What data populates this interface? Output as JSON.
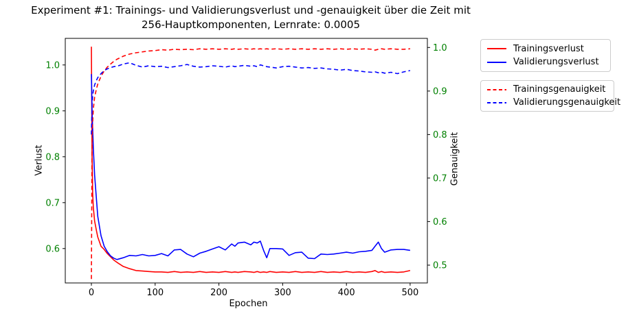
{
  "chart_data": {
    "type": "line",
    "title": "Experiment #1: Trainings- und Validierungsverlust und -genauigkeit über die Zeit mit\n256-Hauptkomponenten, Lernrate: 0.0005",
    "xlabel": "Epochen",
    "ylabel_left": "Verlust",
    "ylabel_right": "Genauigkeit",
    "axis_label_color": "#008000",
    "x_ticks": [
      0,
      100,
      200,
      300,
      400,
      500
    ],
    "y_left_ticks": [
      0.6,
      0.7,
      0.8,
      0.9,
      1.0
    ],
    "y_right_ticks": [
      0.5,
      0.6,
      0.7,
      0.8,
      0.9,
      1.0
    ],
    "xlim": [
      -41,
      527
    ],
    "ylim_left": [
      0.525,
      1.058
    ],
    "ylim_right": [
      0.459,
      1.021
    ],
    "grid": false,
    "legend": {
      "position": "outside-upper-right",
      "boxes": [
        [
          "Trainingsverlust",
          "Validierungsverlust"
        ],
        [
          "Trainingsgenauigkeit",
          "Validierungsgenauigkeit"
        ]
      ]
    },
    "series": [
      {
        "name": "Trainingsverlust",
        "axis": "left",
        "color": "#ff0000",
        "style": "solid",
        "x": [
          0,
          1,
          2,
          3,
          5,
          8,
          10,
          15,
          20,
          25,
          30,
          35,
          40,
          50,
          60,
          70,
          80,
          90,
          100,
          110,
          120,
          130,
          140,
          150,
          160,
          170,
          180,
          190,
          200,
          210,
          220,
          225,
          230,
          240,
          250,
          255,
          260,
          265,
          270,
          275,
          280,
          290,
          300,
          310,
          320,
          330,
          340,
          350,
          360,
          370,
          380,
          390,
          400,
          410,
          420,
          430,
          440,
          445,
          450,
          455,
          460,
          470,
          480,
          490,
          500
        ],
        "y": [
          1.04,
          0.8,
          0.72,
          0.69,
          0.66,
          0.638,
          0.625,
          0.605,
          0.598,
          0.589,
          0.582,
          0.575,
          0.57,
          0.561,
          0.556,
          0.552,
          0.551,
          0.55,
          0.549,
          0.549,
          0.548,
          0.55,
          0.548,
          0.549,
          0.548,
          0.55,
          0.548,
          0.549,
          0.548,
          0.55,
          0.548,
          0.549,
          0.548,
          0.55,
          0.549,
          0.548,
          0.55,
          0.548,
          0.549,
          0.548,
          0.55,
          0.548,
          0.549,
          0.548,
          0.55,
          0.548,
          0.549,
          0.548,
          0.55,
          0.548,
          0.549,
          0.548,
          0.55,
          0.548,
          0.549,
          0.548,
          0.55,
          0.552,
          0.548,
          0.55,
          0.548,
          0.549,
          0.548,
          0.549,
          0.552
        ]
      },
      {
        "name": "Validierungsverlust",
        "axis": "left",
        "color": "#0000ff",
        "style": "solid",
        "x": [
          0,
          1,
          2,
          3,
          5,
          8,
          10,
          15,
          20,
          25,
          30,
          35,
          40,
          50,
          60,
          70,
          80,
          90,
          100,
          110,
          120,
          130,
          140,
          150,
          160,
          170,
          180,
          190,
          200,
          210,
          220,
          225,
          230,
          240,
          250,
          255,
          260,
          265,
          270,
          275,
          280,
          290,
          300,
          310,
          320,
          330,
          340,
          350,
          360,
          370,
          380,
          390,
          400,
          410,
          420,
          430,
          440,
          445,
          450,
          455,
          460,
          470,
          480,
          490,
          500
        ],
        "y": [
          0.98,
          0.9,
          0.86,
          0.82,
          0.76,
          0.705,
          0.67,
          0.628,
          0.605,
          0.593,
          0.584,
          0.579,
          0.576,
          0.58,
          0.585,
          0.584,
          0.587,
          0.584,
          0.585,
          0.589,
          0.584,
          0.597,
          0.598,
          0.588,
          0.582,
          0.59,
          0.594,
          0.599,
          0.604,
          0.597,
          0.61,
          0.605,
          0.612,
          0.614,
          0.608,
          0.614,
          0.612,
          0.616,
          0.596,
          0.58,
          0.6,
          0.6,
          0.599,
          0.585,
          0.591,
          0.592,
          0.579,
          0.578,
          0.588,
          0.587,
          0.588,
          0.59,
          0.592,
          0.59,
          0.593,
          0.594,
          0.596,
          0.605,
          0.614,
          0.6,
          0.592,
          0.597,
          0.598,
          0.598,
          0.596
        ]
      },
      {
        "name": "Trainingsgenauigkeit",
        "axis": "right",
        "color": "#ff0000",
        "style": "dashed",
        "x": [
          0,
          1,
          2,
          3,
          5,
          8,
          10,
          15,
          20,
          25,
          30,
          35,
          40,
          50,
          60,
          70,
          80,
          90,
          100,
          110,
          120,
          130,
          140,
          150,
          160,
          170,
          180,
          190,
          200,
          210,
          220,
          225,
          230,
          240,
          250,
          255,
          260,
          265,
          270,
          275,
          280,
          290,
          300,
          310,
          320,
          330,
          340,
          350,
          360,
          370,
          380,
          390,
          400,
          410,
          420,
          430,
          440,
          445,
          450,
          455,
          460,
          470,
          480,
          490,
          500
        ],
        "y": [
          0.468,
          0.78,
          0.83,
          0.858,
          0.886,
          0.906,
          0.916,
          0.934,
          0.946,
          0.955,
          0.962,
          0.968,
          0.973,
          0.98,
          0.985,
          0.988,
          0.99,
          0.992,
          0.993,
          0.995,
          0.994,
          0.996,
          0.995,
          0.996,
          0.995,
          0.997,
          0.996,
          0.997,
          0.996,
          0.997,
          0.996,
          0.997,
          0.996,
          0.997,
          0.996,
          0.997,
          0.996,
          0.997,
          0.996,
          0.997,
          0.996,
          0.997,
          0.996,
          0.997,
          0.996,
          0.997,
          0.996,
          0.997,
          0.996,
          0.997,
          0.996,
          0.997,
          0.996,
          0.997,
          0.996,
          0.997,
          0.996,
          0.994,
          0.996,
          0.997,
          0.996,
          0.997,
          0.996,
          0.996,
          0.997
        ]
      },
      {
        "name": "Validierungsgenauigkeit",
        "axis": "right",
        "color": "#0000ff",
        "style": "dashed",
        "x": [
          0,
          1,
          2,
          3,
          5,
          8,
          10,
          15,
          20,
          25,
          30,
          35,
          40,
          50,
          60,
          70,
          80,
          90,
          100,
          110,
          120,
          130,
          140,
          150,
          160,
          170,
          180,
          190,
          200,
          210,
          220,
          225,
          230,
          240,
          250,
          255,
          260,
          265,
          270,
          275,
          280,
          290,
          300,
          310,
          320,
          330,
          340,
          350,
          360,
          370,
          380,
          390,
          400,
          410,
          420,
          430,
          440,
          445,
          450,
          455,
          460,
          470,
          480,
          490,
          500
        ],
        "y": [
          0.8,
          0.87,
          0.89,
          0.9,
          0.914,
          0.925,
          0.931,
          0.94,
          0.947,
          0.951,
          0.954,
          0.956,
          0.957,
          0.962,
          0.965,
          0.959,
          0.955,
          0.958,
          0.956,
          0.957,
          0.954,
          0.956,
          0.958,
          0.961,
          0.957,
          0.955,
          0.956,
          0.958,
          0.957,
          0.955,
          0.958,
          0.956,
          0.957,
          0.959,
          0.957,
          0.958,
          0.956,
          0.96,
          0.958,
          0.956,
          0.955,
          0.953,
          0.956,
          0.957,
          0.955,
          0.953,
          0.954,
          0.952,
          0.953,
          0.951,
          0.95,
          0.948,
          0.95,
          0.947,
          0.946,
          0.944,
          0.943,
          0.944,
          0.942,
          0.943,
          0.941,
          0.943,
          0.94,
          0.944,
          0.947
        ]
      }
    ]
  }
}
